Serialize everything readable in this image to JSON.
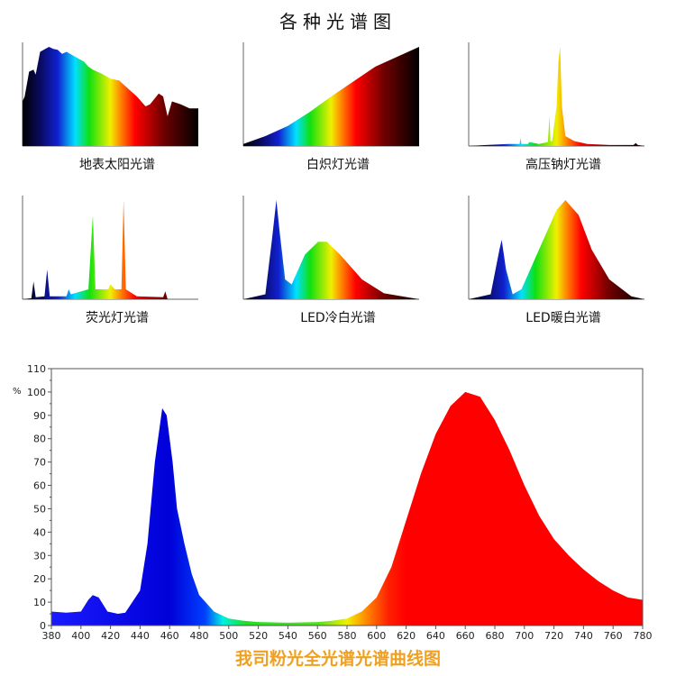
{
  "title": "各种光谱图",
  "colors": {
    "accent_footer": "#f0a020",
    "axis": "#555555"
  },
  "chart_data": [
    {
      "type": "area",
      "title": "地表太阳光谱",
      "x": [
        380,
        385,
        395,
        405,
        410,
        420,
        440,
        450,
        460,
        470,
        480,
        500,
        520,
        530,
        540,
        560,
        580,
        600,
        620,
        640,
        660,
        670,
        690,
        700,
        710,
        720,
        740,
        760,
        780
      ],
      "y": [
        0.45,
        0.5,
        0.75,
        0.77,
        0.72,
        0.95,
        1,
        0.98,
        0.97,
        0.93,
        0.95,
        0.9,
        0.85,
        0.8,
        0.77,
        0.73,
        0.68,
        0.66,
        0.58,
        0.5,
        0.4,
        0.42,
        0.53,
        0.5,
        0.3,
        0.45,
        0.42,
        0.38,
        0.38
      ]
    },
    {
      "type": "area",
      "title": "白炽灯光谱",
      "x": [
        380,
        430,
        480,
        530,
        580,
        630,
        680,
        730,
        780
      ],
      "y": [
        0.02,
        0.1,
        0.2,
        0.34,
        0.5,
        0.65,
        0.8,
        0.9,
        1
      ]
    },
    {
      "type": "area",
      "title": "高压钠灯光谱",
      "x": [
        380,
        420,
        470,
        496,
        498,
        500,
        515,
        518,
        540,
        560,
        564,
        566,
        570,
        580,
        584,
        588,
        592,
        600,
        620,
        650,
        700,
        755,
        760,
        765,
        780
      ],
      "y": [
        0,
        0.01,
        0.02,
        0.02,
        0.08,
        0.02,
        0.02,
        0.04,
        0.02,
        0.04,
        0.3,
        0.05,
        0.05,
        0.4,
        0.85,
        1,
        0.4,
        0.1,
        0.05,
        0.02,
        0.01,
        0.01,
        0.03,
        0.01,
        0
      ]
    },
    {
      "type": "area",
      "title": "荧光灯光谱",
      "x": [
        380,
        400,
        405,
        410,
        430,
        436,
        442,
        480,
        485,
        490,
        530,
        540,
        546,
        575,
        580,
        590,
        605,
        610,
        615,
        640,
        700,
        705,
        710,
        780
      ],
      "y": [
        0,
        0.01,
        0.18,
        0.02,
        0.03,
        0.3,
        0.03,
        0.03,
        0.1,
        0.05,
        0.1,
        0.85,
        0.1,
        0.1,
        0.15,
        0.1,
        0.1,
        1,
        0.1,
        0.03,
        0.02,
        0.08,
        0,
        0
      ]
    },
    {
      "type": "area",
      "title": "LED冷白光谱",
      "x": [
        380,
        430,
        445,
        455,
        462,
        475,
        490,
        520,
        550,
        570,
        600,
        650,
        700,
        780
      ],
      "y": [
        0,
        0.05,
        0.6,
        1,
        0.7,
        0.2,
        0.15,
        0.45,
        0.58,
        0.58,
        0.45,
        0.2,
        0.06,
        0
      ]
    },
    {
      "type": "area",
      "title": "LED暖白光谱",
      "x": [
        380,
        430,
        450,
        455,
        465,
        480,
        500,
        540,
        580,
        600,
        630,
        660,
        700,
        750,
        780
      ],
      "y": [
        0,
        0.05,
        0.5,
        0.6,
        0.3,
        0.05,
        0.1,
        0.5,
        0.9,
        1,
        0.85,
        0.5,
        0.2,
        0.03,
        0
      ]
    },
    {
      "type": "area",
      "title": "我司粉光全光谱光谱曲线图",
      "ylabel": "%",
      "xlim": [
        380,
        780
      ],
      "ylim": [
        0,
        110
      ],
      "xticks": [
        380,
        400,
        420,
        440,
        460,
        480,
        500,
        520,
        540,
        560,
        580,
        600,
        620,
        640,
        660,
        680,
        700,
        720,
        740,
        760,
        780
      ],
      "yticks": [
        0,
        10,
        20,
        30,
        40,
        50,
        60,
        70,
        80,
        90,
        100,
        110
      ],
      "x": [
        380,
        390,
        400,
        405,
        408,
        412,
        418,
        425,
        430,
        440,
        445,
        450,
        455,
        458,
        462,
        465,
        470,
        475,
        480,
        490,
        500,
        510,
        520,
        540,
        560,
        570,
        580,
        590,
        600,
        610,
        620,
        630,
        640,
        650,
        660,
        670,
        680,
        690,
        700,
        710,
        720,
        730,
        740,
        750,
        760,
        770,
        780
      ],
      "y": [
        6,
        5.5,
        6,
        11,
        13,
        12,
        6,
        5,
        5.5,
        15,
        35,
        70,
        93,
        90,
        70,
        50,
        35,
        22,
        13,
        6,
        3,
        2,
        1.5,
        1.2,
        1.5,
        2,
        3,
        6,
        12,
        25,
        45,
        65,
        82,
        94,
        100,
        98,
        88,
        75,
        60,
        47,
        37,
        30,
        24,
        19,
        15,
        12,
        11
      ]
    }
  ]
}
